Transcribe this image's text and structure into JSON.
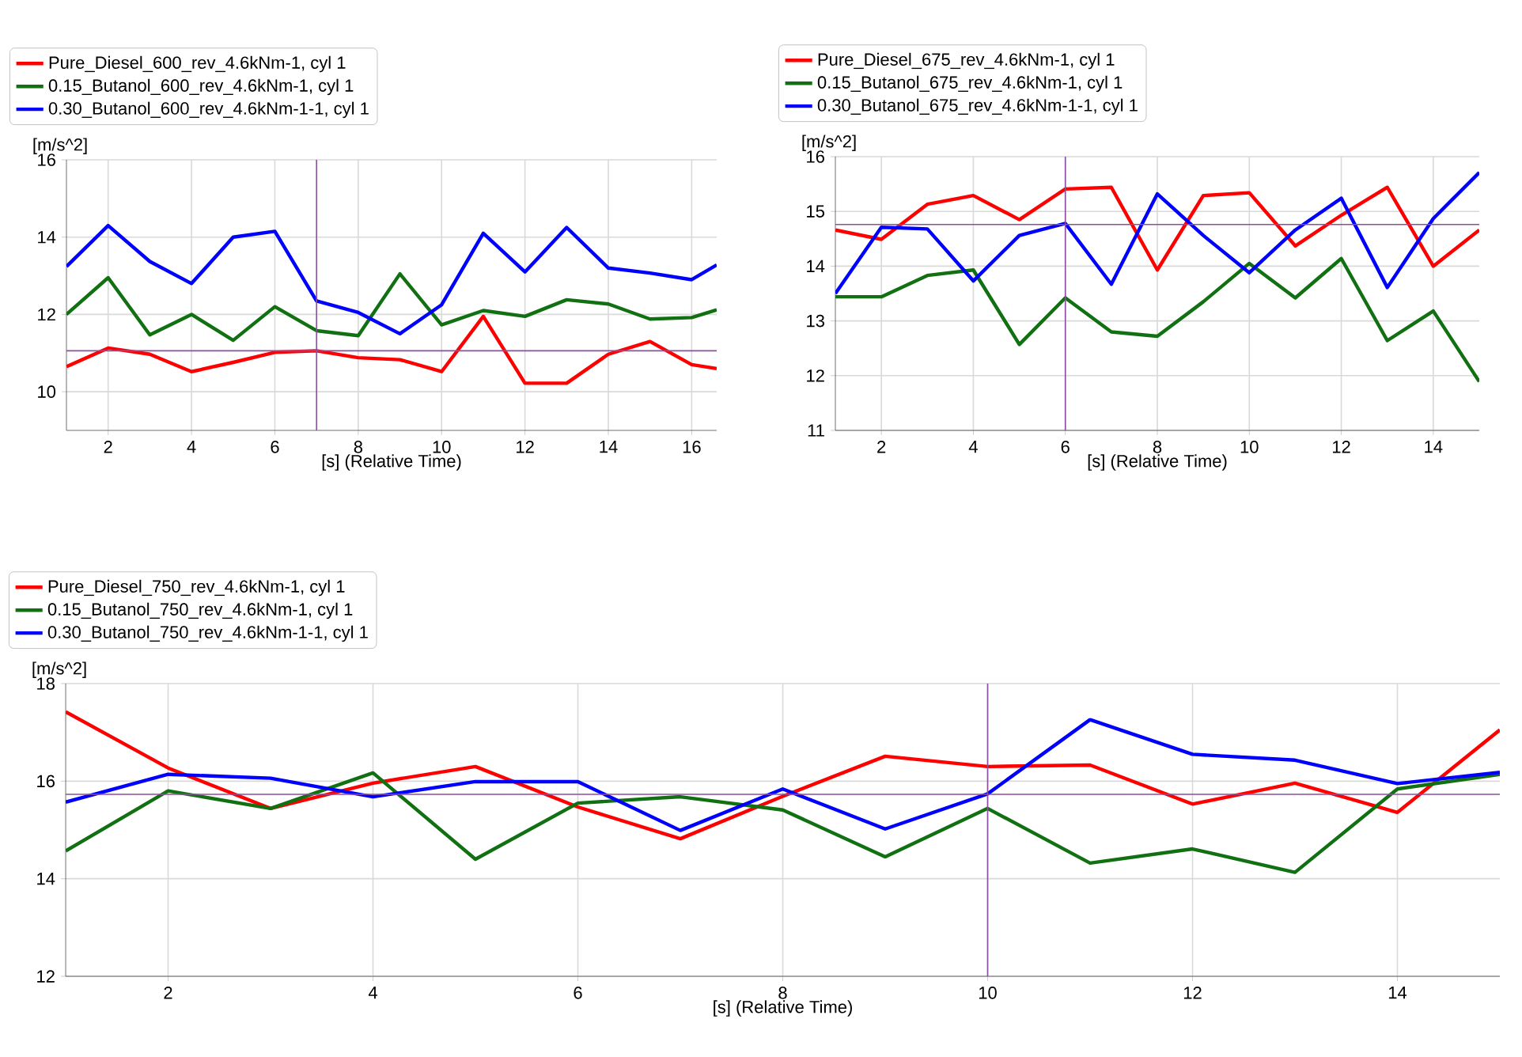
{
  "chart_data": [
    {
      "type": "line",
      "xlabel": "[s] (Relative Time)",
      "ylabel": "[m/s^2]",
      "x": [
        1,
        2,
        3,
        4,
        5,
        6,
        7,
        8,
        9,
        10,
        11,
        12,
        13,
        14,
        15,
        16,
        16.6
      ],
      "xlim": [
        1,
        16.6
      ],
      "ylim": [
        9,
        16
      ],
      "xticks": [
        2,
        4,
        6,
        8,
        10,
        12,
        14,
        16
      ],
      "yticks": [
        10,
        12,
        14,
        16
      ],
      "grid": true,
      "legend": "top",
      "series": [
        {
          "name": "Pure_Diesel_600_rev_4.6kNm-1, cyl 1",
          "color": "#ff0000",
          "values": [
            10.65,
            11.13,
            10.97,
            10.52,
            10.76,
            11.02,
            11.06,
            10.88,
            10.83,
            10.52,
            11.95,
            10.22,
            10.22,
            10.97,
            11.3,
            10.7,
            10.6
          ]
        },
        {
          "name": "0.15_Butanol_600_rev_4.6kNm-1, cyl 1",
          "color": "#117011",
          "values": [
            12.0,
            12.95,
            11.47,
            12.0,
            11.33,
            12.2,
            11.58,
            11.45,
            13.05,
            11.73,
            12.1,
            11.95,
            12.38,
            12.27,
            11.88,
            11.92,
            12.12
          ]
        },
        {
          "name": "0.30_Butanol_600_rev_4.6kNm-1-1, cyl 1",
          "color": "#0000ff",
          "values": [
            13.24,
            14.3,
            13.37,
            12.8,
            14.0,
            14.15,
            12.35,
            12.05,
            11.5,
            12.25,
            14.1,
            13.1,
            14.25,
            13.2,
            13.07,
            12.9,
            13.28
          ]
        }
      ],
      "ref_lines": [
        {
          "axis": "y",
          "value": 11.06,
          "color": "#8b4f9e"
        },
        {
          "axis": "x",
          "value": 7,
          "color": "#8b4f9e"
        }
      ]
    },
    {
      "type": "line",
      "xlabel": "[s] (Relative Time)",
      "ylabel": "[m/s^2]",
      "x": [
        1,
        2,
        3,
        4,
        5,
        6,
        7,
        8,
        9,
        10,
        11,
        12,
        13,
        14,
        15
      ],
      "xlim": [
        1,
        15
      ],
      "ylim": [
        11,
        16
      ],
      "xticks": [
        2,
        4,
        6,
        8,
        10,
        12,
        14
      ],
      "yticks": [
        11,
        12,
        13,
        14,
        15,
        16
      ],
      "grid": true,
      "legend": "top",
      "series": [
        {
          "name": "Pure_Diesel_675_rev_4.6kNm-1, cyl 1",
          "color": "#ff0000",
          "values": [
            14.66,
            14.49,
            15.13,
            15.29,
            14.85,
            15.41,
            15.44,
            13.93,
            15.29,
            15.34,
            14.37,
            14.93,
            15.44,
            14.0,
            14.66
          ]
        },
        {
          "name": "0.15_Butanol_675_rev_4.6kNm-1, cyl 1",
          "color": "#117011",
          "values": [
            13.44,
            13.44,
            13.83,
            13.93,
            12.57,
            13.42,
            12.8,
            12.72,
            13.35,
            14.05,
            13.42,
            14.14,
            12.64,
            13.18,
            11.89
          ]
        },
        {
          "name": "0.30_Butanol_675_rev_4.6kNm-1-1, cyl 1",
          "color": "#0000ff",
          "values": [
            13.5,
            14.71,
            14.68,
            13.73,
            14.56,
            14.78,
            13.67,
            15.32,
            14.56,
            13.88,
            14.66,
            15.24,
            13.61,
            14.87,
            15.71
          ]
        }
      ],
      "ref_lines": [
        {
          "axis": "y",
          "value": 14.76,
          "color": "#8b4f9e"
        },
        {
          "axis": "x",
          "value": 6,
          "color": "#8b4f9e"
        }
      ]
    },
    {
      "type": "line",
      "xlabel": "[s] (Relative Time)",
      "ylabel": "[m/s^2]",
      "x": [
        1,
        2,
        3,
        4,
        5,
        6,
        7,
        8,
        9,
        10,
        11,
        12,
        13,
        14,
        15
      ],
      "xlim": [
        1,
        15
      ],
      "ylim": [
        12,
        18
      ],
      "xticks": [
        2,
        4,
        6,
        8,
        10,
        12,
        14
      ],
      "yticks": [
        12,
        14,
        16,
        18
      ],
      "grid": true,
      "legend": "top",
      "series": [
        {
          "name": "Pure_Diesel_750_rev_4.6kNm-1, cyl 1",
          "color": "#ff0000",
          "values": [
            17.42,
            16.27,
            15.44,
            15.96,
            16.3,
            15.47,
            14.82,
            15.69,
            16.51,
            16.3,
            16.33,
            15.53,
            15.96,
            15.36,
            17.05
          ]
        },
        {
          "name": "0.15_Butanol_750_rev_4.6kNm-1, cyl 1",
          "color": "#117011",
          "values": [
            14.57,
            15.8,
            15.44,
            16.17,
            14.4,
            15.55,
            15.68,
            15.41,
            14.45,
            15.44,
            14.32,
            14.61,
            14.13,
            15.84,
            16.14
          ]
        },
        {
          "name": "0.30_Butanol_750_rev_4.6kNm-1-1, cyl 1",
          "color": "#0000ff",
          "values": [
            15.57,
            16.14,
            16.06,
            15.68,
            15.99,
            15.99,
            14.99,
            15.84,
            15.02,
            15.74,
            17.26,
            16.55,
            16.43,
            15.95,
            16.18
          ]
        }
      ],
      "ref_lines": [
        {
          "axis": "y",
          "value": 15.73,
          "color": "#8b4f9e"
        },
        {
          "axis": "x",
          "value": 10,
          "color": "#8b4f9e"
        }
      ]
    }
  ]
}
